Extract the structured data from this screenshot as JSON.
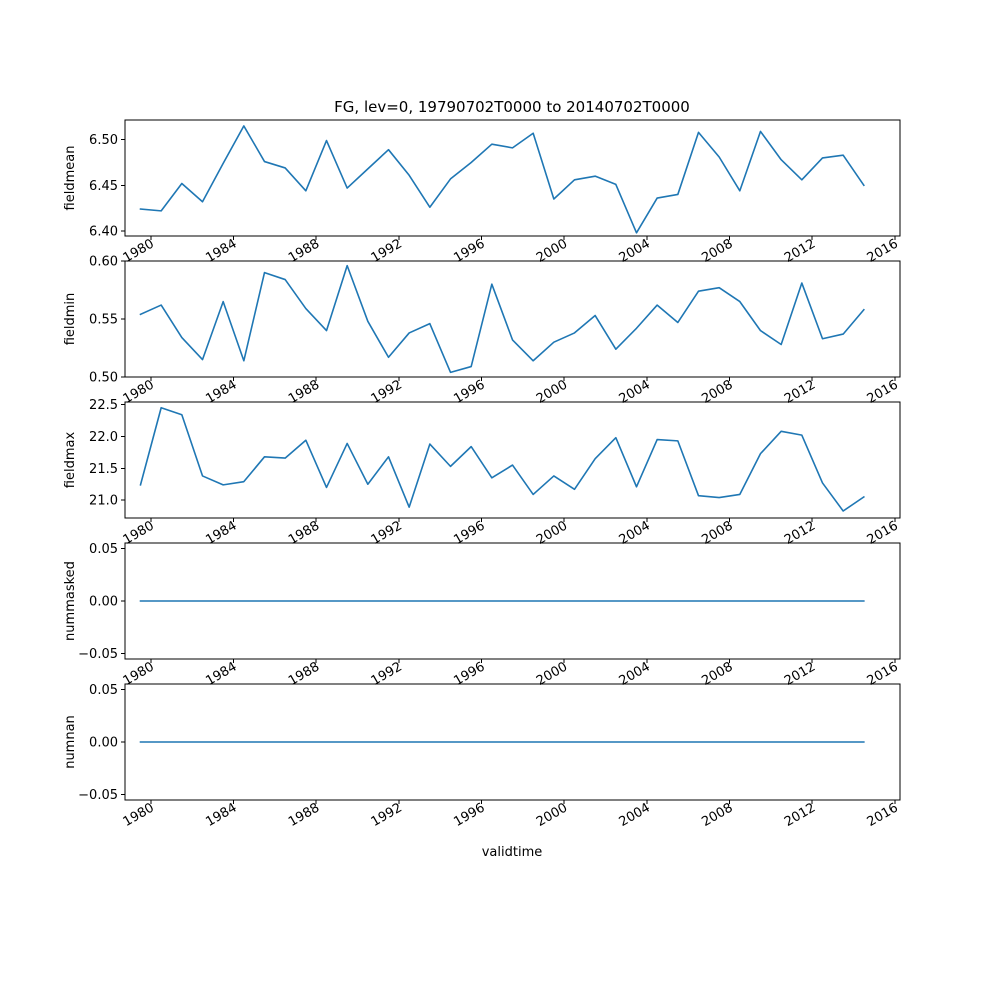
{
  "chart_data": {
    "type": "line",
    "title": "FG, lev=0, 19790702T0000 to 20140702T0000",
    "xlabel": "validtime",
    "x_ticks": [
      "1980",
      "1984",
      "1988",
      "1992",
      "1996",
      "2000",
      "2004",
      "2008",
      "2012",
      "2016"
    ],
    "x_tick_values": [
      1980,
      1984,
      1988,
      1992,
      1996,
      2000,
      2004,
      2008,
      2012,
      2016
    ],
    "xlim": [
      1978.75,
      2016.25
    ],
    "years": [
      1979.5,
      1980.5,
      1981.5,
      1982.5,
      1983.5,
      1984.5,
      1985.5,
      1986.5,
      1987.5,
      1988.5,
      1989.5,
      1990.5,
      1991.5,
      1992.5,
      1993.5,
      1994.5,
      1995.5,
      1996.5,
      1997.5,
      1998.5,
      1999.5,
      2000.5,
      2001.5,
      2002.5,
      2003.5,
      2004.5,
      2005.5,
      2006.5,
      2007.5,
      2008.5,
      2009.5,
      2010.5,
      2011.5,
      2012.5,
      2013.5,
      2014.5
    ],
    "line_color": "#1f77b4",
    "panels": [
      {
        "ylabel": "fieldmean",
        "ylim": [
          6.3945,
          6.5215
        ],
        "y_ticks": [
          "6.40",
          "6.45",
          "6.50"
        ],
        "y_tick_values": [
          6.4,
          6.45,
          6.5
        ],
        "values": [
          6.424,
          6.422,
          6.452,
          6.432,
          6.474,
          6.515,
          6.476,
          6.469,
          6.444,
          6.499,
          6.447,
          6.468,
          6.489,
          6.461,
          6.426,
          6.457,
          6.475,
          6.495,
          6.491,
          6.507,
          6.435,
          6.456,
          6.46,
          6.451,
          6.398,
          6.436,
          6.44,
          6.508,
          6.481,
          6.444,
          6.509,
          6.478,
          6.456,
          6.48,
          6.483,
          6.45
        ],
        "show_x_labels": true
      },
      {
        "ylabel": "fieldmin",
        "ylim": [
          0.5,
          0.6
        ],
        "y_ticks": [
          "0.50",
          "0.55",
          "0.60"
        ],
        "y_tick_values": [
          0.5,
          0.55,
          0.6
        ],
        "values": [
          0.554,
          0.562,
          0.534,
          0.515,
          0.565,
          0.514,
          0.59,
          0.584,
          0.559,
          0.54,
          0.596,
          0.548,
          0.517,
          0.538,
          0.546,
          0.504,
          0.509,
          0.58,
          0.532,
          0.514,
          0.53,
          0.538,
          0.553,
          0.524,
          0.542,
          0.562,
          0.547,
          0.574,
          0.577,
          0.565,
          0.54,
          0.528,
          0.581,
          0.533,
          0.537,
          0.558
        ],
        "show_x_labels": true
      },
      {
        "ylabel": "fieldmax",
        "ylim": [
          20.72,
          22.54
        ],
        "y_ticks": [
          "21.0",
          "21.5",
          "22.0",
          "22.5"
        ],
        "y_tick_values": [
          21.0,
          21.5,
          22.0,
          22.5
        ],
        "values": [
          21.24,
          22.45,
          22.34,
          21.38,
          21.24,
          21.29,
          21.68,
          21.66,
          21.94,
          21.2,
          21.89,
          21.25,
          21.68,
          20.89,
          21.88,
          21.53,
          21.84,
          21.35,
          21.55,
          21.09,
          21.38,
          21.17,
          21.65,
          21.98,
          21.21,
          21.95,
          21.93,
          21.07,
          21.04,
          21.09,
          21.73,
          22.08,
          22.02,
          21.27,
          20.83,
          21.05
        ],
        "show_x_labels": true
      },
      {
        "ylabel": "nummasked",
        "ylim": [
          -0.055,
          0.055
        ],
        "y_ticks": [
          "−0.05",
          "0.00",
          "0.05"
        ],
        "y_tick_values": [
          -0.05,
          0.0,
          0.05
        ],
        "values": [
          0,
          0,
          0,
          0,
          0,
          0,
          0,
          0,
          0,
          0,
          0,
          0,
          0,
          0,
          0,
          0,
          0,
          0,
          0,
          0,
          0,
          0,
          0,
          0,
          0,
          0,
          0,
          0,
          0,
          0,
          0,
          0,
          0,
          0,
          0,
          0
        ],
        "show_x_labels": true
      },
      {
        "ylabel": "numnan",
        "ylim": [
          -0.055,
          0.055
        ],
        "y_ticks": [
          "−0.05",
          "0.00",
          "0.05"
        ],
        "y_tick_values": [
          -0.05,
          0.0,
          0.05
        ],
        "values": [
          0,
          0,
          0,
          0,
          0,
          0,
          0,
          0,
          0,
          0,
          0,
          0,
          0,
          0,
          0,
          0,
          0,
          0,
          0,
          0,
          0,
          0,
          0,
          0,
          0,
          0,
          0,
          0,
          0,
          0,
          0,
          0,
          0,
          0,
          0,
          0
        ],
        "show_x_labels": true
      }
    ]
  }
}
